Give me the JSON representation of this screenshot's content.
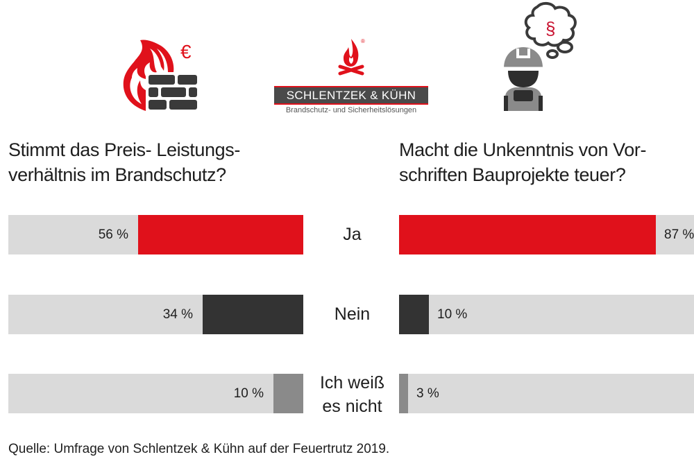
{
  "header": {
    "logo": {
      "name": "SCHLENTZEK & KÜHN",
      "tagline": "Brandschutz- und Sicherheitslösungen",
      "registered_mark": "®"
    },
    "icons": [
      "fire-wall-euro-icon",
      "company-flame-logo-icon",
      "worker-thinking-paragraph-icon"
    ],
    "euro_symbol": "€",
    "paragraph_symbol": "§"
  },
  "colors": {
    "yes": "#e0111b",
    "no": "#333333",
    "dont_know": "#8a8a8a",
    "track": "#dadada"
  },
  "chart_data": [
    {
      "type": "bar",
      "orientation": "horizontal",
      "direction": "right-to-left",
      "title": "Stimmt das Preis- Leistungs-\nverhältnis im Brandschutz?",
      "categories": [
        "Ja",
        "Nein",
        "Ich weiß es nicht"
      ],
      "values": [
        56,
        34,
        10
      ],
      "labels": [
        "56 %",
        "34 %",
        "10 %"
      ],
      "unit": "%",
      "xlim": [
        0,
        100
      ]
    },
    {
      "type": "bar",
      "orientation": "horizontal",
      "direction": "left-to-right",
      "title": "Macht die Unkenntnis von Vor-\nschriften Bauprojekte teuer?",
      "categories": [
        "Ja",
        "Nein",
        "Ich weiß es nicht"
      ],
      "values": [
        87,
        10,
        3
      ],
      "labels": [
        "87 %",
        "10 %",
        "3 %"
      ],
      "unit": "%",
      "xlim": [
        0,
        100
      ]
    }
  ],
  "category_labels": [
    "Ja",
    "Nein",
    "Ich weiß\nes nicht"
  ],
  "footer": "Quelle: Umfrage von Schlentzek & Kühn auf der Feuertrutz 2019."
}
